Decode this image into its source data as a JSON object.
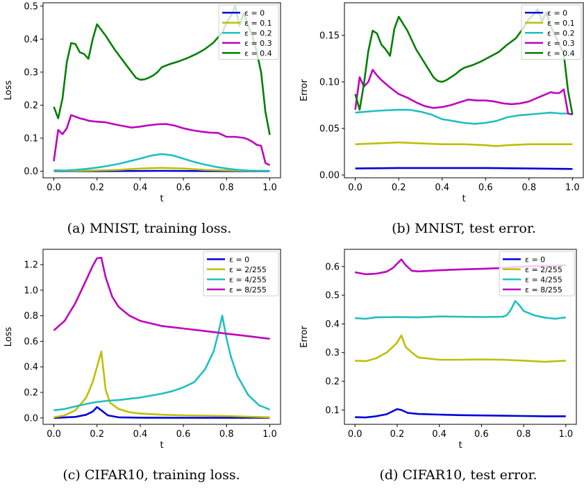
{
  "colors": {
    "blue": "#0000dd",
    "olive": "#bfbf00",
    "cyan": "#1fbfbf",
    "magenta": "#bf00bf",
    "green": "#007f00"
  },
  "chart_data": [
    {
      "type": "line",
      "caption": "(a) MNIST, training loss.",
      "xlabel": "t",
      "ylabel": "Loss",
      "xlim": [
        -0.05,
        1.05
      ],
      "ylim": [
        -0.02,
        0.51
      ],
      "xticks": [
        "0.0",
        "0.2",
        "0.4",
        "0.6",
        "0.8",
        "1.0"
      ],
      "yticks": [
        "0.0",
        "0.1",
        "0.2",
        "0.3",
        "0.4",
        "0.5"
      ],
      "legend_position": "top-right",
      "series": [
        {
          "name": "ε = 0",
          "color": "#0000dd",
          "x": [
            0,
            0.2,
            0.5,
            0.8,
            1.0
          ],
          "y": [
            0.0,
            0.0,
            0.001,
            0.0,
            0.0
          ]
        },
        {
          "name": "ε = 0.1",
          "color": "#bfbf00",
          "x": [
            0,
            0.1,
            0.2,
            0.3,
            0.4,
            0.5,
            0.6,
            0.7,
            0.8,
            0.9,
            1.0
          ],
          "y": [
            0.001,
            0.001,
            0.002,
            0.004,
            0.008,
            0.01,
            0.008,
            0.004,
            0.002,
            0.001,
            0.001
          ]
        },
        {
          "name": "ε = 0.2",
          "color": "#1fbfbf",
          "x": [
            0,
            0.05,
            0.1,
            0.15,
            0.2,
            0.25,
            0.3,
            0.35,
            0.4,
            0.45,
            0.5,
            0.55,
            0.6,
            0.65,
            0.7,
            0.75,
            0.8,
            0.85,
            0.9,
            0.95,
            1.0
          ],
          "y": [
            0.003,
            0.002,
            0.004,
            0.007,
            0.011,
            0.016,
            0.022,
            0.03,
            0.038,
            0.047,
            0.052,
            0.048,
            0.038,
            0.028,
            0.02,
            0.013,
            0.008,
            0.004,
            0.002,
            0.001,
            0.001
          ]
        },
        {
          "name": "ε = 0.3",
          "color": "#bf00bf",
          "x": [
            0,
            0.02,
            0.04,
            0.06,
            0.08,
            0.1,
            0.12,
            0.14,
            0.16,
            0.18,
            0.2,
            0.24,
            0.28,
            0.32,
            0.36,
            0.4,
            0.44,
            0.48,
            0.52,
            0.56,
            0.6,
            0.64,
            0.68,
            0.72,
            0.76,
            0.8,
            0.84,
            0.88,
            0.9,
            0.92,
            0.94,
            0.96,
            0.98,
            1.0
          ],
          "y": [
            0.03,
            0.125,
            0.112,
            0.13,
            0.17,
            0.165,
            0.16,
            0.157,
            0.153,
            0.151,
            0.15,
            0.148,
            0.142,
            0.137,
            0.132,
            0.135,
            0.139,
            0.142,
            0.143,
            0.138,
            0.13,
            0.124,
            0.12,
            0.117,
            0.116,
            0.104,
            0.104,
            0.101,
            0.096,
            0.089,
            0.08,
            0.077,
            0.025,
            0.018
          ]
        },
        {
          "name": "ε = 0.4",
          "color": "#007f00",
          "x": [
            0,
            0.02,
            0.04,
            0.06,
            0.08,
            0.1,
            0.12,
            0.14,
            0.16,
            0.18,
            0.2,
            0.24,
            0.28,
            0.32,
            0.36,
            0.38,
            0.4,
            0.42,
            0.44,
            0.46,
            0.48,
            0.5,
            0.54,
            0.58,
            0.62,
            0.66,
            0.7,
            0.74,
            0.78,
            0.8,
            0.82,
            0.84,
            0.86,
            0.88,
            0.9,
            0.92,
            0.94,
            0.96,
            0.98,
            1.0
          ],
          "y": [
            0.195,
            0.16,
            0.22,
            0.33,
            0.388,
            0.385,
            0.36,
            0.355,
            0.34,
            0.4,
            0.445,
            0.41,
            0.37,
            0.335,
            0.3,
            0.283,
            0.277,
            0.278,
            0.283,
            0.29,
            0.3,
            0.315,
            0.325,
            0.333,
            0.343,
            0.355,
            0.37,
            0.39,
            0.42,
            0.45,
            0.47,
            0.5,
            0.44,
            0.48,
            0.44,
            0.41,
            0.36,
            0.3,
            0.18,
            0.11
          ]
        }
      ]
    },
    {
      "type": "line",
      "caption": "(b) MNIST, test error.",
      "xlabel": "t",
      "ylabel": "Error",
      "xlim": [
        -0.05,
        1.05
      ],
      "ylim": [
        -0.003,
        0.185
      ],
      "xticks": [
        "0.0",
        "0.2",
        "0.4",
        "0.6",
        "0.8",
        "1.0"
      ],
      "yticks": [
        "0.00",
        "0.05",
        "0.10",
        "0.15"
      ],
      "legend_position": "top-right",
      "series": [
        {
          "name": "ε = 0",
          "color": "#0000dd",
          "x": [
            0,
            0.2,
            0.4,
            0.6,
            0.8,
            1.0
          ],
          "y": [
            0.007,
            0.0075,
            0.0075,
            0.0075,
            0.007,
            0.0065
          ]
        },
        {
          "name": "ε = 0.1",
          "color": "#bfbf00",
          "x": [
            0,
            0.1,
            0.2,
            0.3,
            0.4,
            0.5,
            0.6,
            0.65,
            0.7,
            0.8,
            0.9,
            1.0
          ],
          "y": [
            0.033,
            0.034,
            0.035,
            0.034,
            0.033,
            0.033,
            0.032,
            0.031,
            0.032,
            0.033,
            0.033,
            0.033
          ]
        },
        {
          "name": "ε = 0.2",
          "color": "#1fbfbf",
          "x": [
            0,
            0.1,
            0.2,
            0.25,
            0.3,
            0.35,
            0.4,
            0.45,
            0.5,
            0.55,
            0.6,
            0.65,
            0.7,
            0.75,
            0.8,
            0.85,
            0.9,
            0.95,
            0.98,
            1.0
          ],
          "y": [
            0.067,
            0.069,
            0.07,
            0.07,
            0.068,
            0.065,
            0.06,
            0.058,
            0.056,
            0.055,
            0.056,
            0.058,
            0.062,
            0.064,
            0.065,
            0.066,
            0.067,
            0.066,
            0.066,
            0.065
          ]
        },
        {
          "name": "ε = 0.3",
          "color": "#bf00bf",
          "x": [
            0,
            0.02,
            0.04,
            0.06,
            0.08,
            0.1,
            0.12,
            0.14,
            0.16,
            0.2,
            0.24,
            0.28,
            0.32,
            0.36,
            0.4,
            0.44,
            0.48,
            0.52,
            0.56,
            0.6,
            0.64,
            0.68,
            0.72,
            0.76,
            0.8,
            0.84,
            0.88,
            0.9,
            0.92,
            0.94,
            0.96,
            0.98,
            1.0
          ],
          "y": [
            0.07,
            0.105,
            0.095,
            0.1,
            0.113,
            0.107,
            0.102,
            0.098,
            0.094,
            0.087,
            0.083,
            0.078,
            0.074,
            0.072,
            0.073,
            0.075,
            0.078,
            0.081,
            0.08,
            0.08,
            0.079,
            0.077,
            0.076,
            0.077,
            0.079,
            0.083,
            0.087,
            0.089,
            0.088,
            0.088,
            0.092,
            0.066,
            0.065
          ]
        },
        {
          "name": "ε = 0.4",
          "color": "#007f00",
          "x": [
            0,
            0.02,
            0.04,
            0.06,
            0.08,
            0.1,
            0.12,
            0.14,
            0.16,
            0.18,
            0.2,
            0.24,
            0.28,
            0.32,
            0.36,
            0.38,
            0.4,
            0.42,
            0.44,
            0.46,
            0.48,
            0.5,
            0.54,
            0.58,
            0.62,
            0.66,
            0.7,
            0.74,
            0.78,
            0.8,
            0.82,
            0.84,
            0.86,
            0.88,
            0.9,
            0.92,
            0.94,
            0.96,
            0.98,
            1.0
          ],
          "y": [
            0.087,
            0.07,
            0.098,
            0.133,
            0.155,
            0.152,
            0.14,
            0.135,
            0.128,
            0.157,
            0.17,
            0.155,
            0.135,
            0.12,
            0.105,
            0.101,
            0.1,
            0.102,
            0.105,
            0.108,
            0.112,
            0.115,
            0.118,
            0.122,
            0.127,
            0.132,
            0.14,
            0.147,
            0.16,
            0.168,
            0.172,
            0.178,
            0.165,
            0.175,
            0.16,
            0.15,
            0.14,
            0.13,
            0.09,
            0.065
          ]
        }
      ]
    },
    {
      "type": "line",
      "caption": "(c) CIFAR10, training loss.",
      "xlabel": "t",
      "ylabel": "Loss",
      "xlim": [
        -0.05,
        1.05
      ],
      "ylim": [
        -0.05,
        1.32
      ],
      "xticks": [
        "0.0",
        "0.2",
        "0.4",
        "0.6",
        "0.8",
        "1.0"
      ],
      "yticks": [
        "0.0",
        "0.2",
        "0.4",
        "0.6",
        "0.8",
        "1.0",
        "1.2"
      ],
      "legend_position": "top-right",
      "series": [
        {
          "name": "ε = 0",
          "color": "#0000dd",
          "x": [
            0,
            0.1,
            0.15,
            0.18,
            0.2,
            0.22,
            0.25,
            0.3,
            0.4,
            0.6,
            0.8,
            1.0
          ],
          "y": [
            0.0,
            0.008,
            0.025,
            0.05,
            0.085,
            0.06,
            0.02,
            0.005,
            0.002,
            0.001,
            0.001,
            0.001
          ]
        },
        {
          "name": "ε = 2/255",
          "color": "#bfbf00",
          "x": [
            0,
            0.05,
            0.1,
            0.15,
            0.18,
            0.2,
            0.22,
            0.24,
            0.26,
            0.3,
            0.35,
            0.4,
            0.5,
            0.6,
            0.7,
            0.8,
            0.9,
            1.0
          ],
          "y": [
            0.005,
            0.02,
            0.06,
            0.16,
            0.28,
            0.4,
            0.52,
            0.22,
            0.12,
            0.07,
            0.045,
            0.035,
            0.025,
            0.02,
            0.018,
            0.015,
            0.01,
            0.005
          ]
        },
        {
          "name": "ε = 4/255",
          "color": "#1fbfbf",
          "x": [
            0,
            0.05,
            0.1,
            0.15,
            0.2,
            0.25,
            0.3,
            0.35,
            0.4,
            0.45,
            0.5,
            0.55,
            0.6,
            0.65,
            0.7,
            0.74,
            0.76,
            0.78,
            0.8,
            0.82,
            0.85,
            0.9,
            0.95,
            1.0
          ],
          "y": [
            0.06,
            0.07,
            0.09,
            0.11,
            0.125,
            0.135,
            0.14,
            0.15,
            0.16,
            0.175,
            0.19,
            0.21,
            0.24,
            0.28,
            0.38,
            0.52,
            0.65,
            0.8,
            0.62,
            0.48,
            0.33,
            0.18,
            0.1,
            0.065
          ]
        },
        {
          "name": "ε = 8/255",
          "color": "#bf00bf",
          "x": [
            0,
            0.05,
            0.1,
            0.15,
            0.18,
            0.2,
            0.22,
            0.24,
            0.27,
            0.3,
            0.35,
            0.4,
            0.5,
            0.6,
            0.7,
            0.8,
            0.9,
            1.0
          ],
          "y": [
            0.685,
            0.76,
            0.9,
            1.08,
            1.19,
            1.25,
            1.255,
            1.1,
            0.95,
            0.87,
            0.8,
            0.76,
            0.72,
            0.7,
            0.68,
            0.66,
            0.64,
            0.62
          ]
        }
      ]
    },
    {
      "type": "line",
      "caption": "(d) CIFAR10, test error.",
      "xlabel": "t",
      "ylabel": "Error",
      "xlim": [
        -0.05,
        1.05
      ],
      "ylim": [
        0.05,
        0.66
      ],
      "xticks": [
        "0.0",
        "0.2",
        "0.4",
        "0.6",
        "0.8",
        "1.0"
      ],
      "yticks": [
        "0.1",
        "0.2",
        "0.3",
        "0.4",
        "0.5",
        "0.6"
      ],
      "legend_position": "top-right",
      "series": [
        {
          "name": "ε = 0",
          "color": "#0000dd",
          "x": [
            0,
            0.05,
            0.1,
            0.15,
            0.2,
            0.22,
            0.25,
            0.3,
            0.4,
            0.5,
            0.6,
            0.7,
            0.8,
            0.9,
            1.0
          ],
          "y": [
            0.075,
            0.074,
            0.078,
            0.085,
            0.103,
            0.1,
            0.09,
            0.086,
            0.084,
            0.082,
            0.081,
            0.08,
            0.079,
            0.078,
            0.078
          ]
        },
        {
          "name": "ε = 2/255",
          "color": "#bfbf00",
          "x": [
            0,
            0.05,
            0.1,
            0.15,
            0.18,
            0.2,
            0.22,
            0.24,
            0.27,
            0.3,
            0.4,
            0.5,
            0.6,
            0.7,
            0.8,
            0.9,
            1.0
          ],
          "y": [
            0.272,
            0.27,
            0.28,
            0.3,
            0.32,
            0.335,
            0.36,
            0.32,
            0.3,
            0.283,
            0.275,
            0.275,
            0.276,
            0.275,
            0.272,
            0.268,
            0.272
          ]
        },
        {
          "name": "ε = 4/255",
          "color": "#1fbfbf",
          "x": [
            0,
            0.05,
            0.1,
            0.2,
            0.3,
            0.4,
            0.5,
            0.6,
            0.7,
            0.72,
            0.74,
            0.76,
            0.78,
            0.8,
            0.85,
            0.9,
            0.95,
            1.0
          ],
          "y": [
            0.42,
            0.418,
            0.423,
            0.424,
            0.423,
            0.426,
            0.425,
            0.424,
            0.425,
            0.43,
            0.45,
            0.48,
            0.465,
            0.445,
            0.43,
            0.422,
            0.418,
            0.423
          ]
        },
        {
          "name": "ε = 8/255",
          "color": "#bf00bf",
          "x": [
            0,
            0.05,
            0.1,
            0.15,
            0.18,
            0.2,
            0.22,
            0.24,
            0.27,
            0.3,
            0.4,
            0.5,
            0.6,
            0.7,
            0.8,
            0.9,
            1.0
          ],
          "y": [
            0.58,
            0.573,
            0.575,
            0.582,
            0.595,
            0.61,
            0.625,
            0.605,
            0.585,
            0.583,
            0.587,
            0.59,
            0.592,
            0.595,
            0.6,
            0.602,
            0.605
          ]
        }
      ]
    }
  ]
}
